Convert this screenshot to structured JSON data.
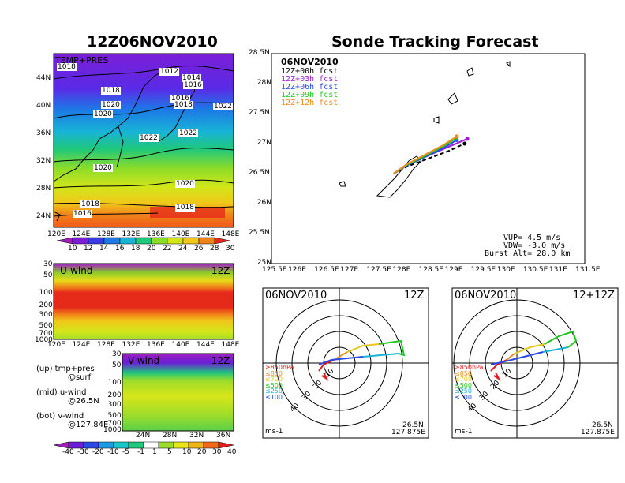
{
  "titles": {
    "left": "12Z06NOV2010",
    "right": "Sonde Tracking Forecast"
  },
  "map_panel": {
    "label": "TEMP+PRES",
    "y_ticks": [
      "44N",
      "40N",
      "36N",
      "32N",
      "28N",
      "24N"
    ],
    "x_ticks": [
      "120E",
      "124E",
      "128E",
      "132E",
      "136E",
      "140E",
      "144E",
      "148E"
    ],
    "isobars": [
      "1018",
      "1012",
      "1014",
      "1016",
      "1018",
      "1016",
      "1020",
      "1018",
      "1020",
      "1022",
      "1022",
      "1022",
      "1020",
      "1020",
      "1018",
      "1016",
      "1018"
    ],
    "colorbar_labels": [
      "10",
      "12",
      "14",
      "16",
      "18",
      "20",
      "22",
      "24",
      "26",
      "28",
      "30"
    ],
    "colorbar_colors": [
      "#9f1fbf",
      "#7a1fd6",
      "#3a3ae6",
      "#1d78e6",
      "#18b4d6",
      "#1fc87a",
      "#8cdc2a",
      "#d2e61a",
      "#f0c81a",
      "#f0821a",
      "#e62a1a"
    ]
  },
  "uwind_panel": {
    "label": "U-wind",
    "time": "12Z",
    "y_ticks": [
      "30",
      "50",
      "100",
      "200",
      "300",
      "500",
      "700",
      "1000"
    ],
    "x_ticks": [
      "120E",
      "124E",
      "128E",
      "132E",
      "136E",
      "140E",
      "144E",
      "148E"
    ]
  },
  "vwind_panel": {
    "label": "V-wind",
    "time": "12Z",
    "y_ticks": [
      "30",
      "50",
      "100",
      "200",
      "300",
      "500",
      "700",
      "1000"
    ],
    "x_ticks": [
      "24N",
      "28N",
      "32N",
      "36N"
    ]
  },
  "descriptions": [
    {
      "line1": "(up) tmp+pres",
      "line2": "@surf"
    },
    {
      "line1": "(mid) u-wind",
      "line2": "@26.5N"
    },
    {
      "line1": "(bot) v-wind",
      "line2": "@127.84E"
    }
  ],
  "wind_colorbar": {
    "labels": [
      "-40",
      "-30",
      "-20",
      "-10",
      "-5",
      "-1",
      "1",
      "5",
      "10",
      "20",
      "30",
      "40"
    ],
    "colors": [
      "#a01fbf",
      "#6a1fd6",
      "#2a4ae6",
      "#1d9ae6",
      "#18c8c8",
      "#1fc87a",
      "#ffffff",
      "#9cdc2a",
      "#e6e61a",
      "#f0b41a",
      "#f06a1a",
      "#e61a1a"
    ]
  },
  "track_panel": {
    "date": "06NOV2010",
    "legend": [
      {
        "label": "12Z+00h fcst",
        "color": "#000000"
      },
      {
        "label": "12Z+03h fcst",
        "color": "#9b1fd6"
      },
      {
        "label": "12Z+06h fcst",
        "color": "#2a4ae6"
      },
      {
        "label": "12Z+09h fcst",
        "color": "#1fc81f"
      },
      {
        "label": "12Z+12h fcst",
        "color": "#f08c1a"
      }
    ],
    "info": [
      "VUP= 4.5 m/s",
      "VDW= -3.0 m/s",
      "Burst Alt= 28.0 km"
    ],
    "y_ticks": [
      "28.5N",
      "28N",
      "27.5N",
      "27N",
      "26.5N",
      "26N",
      "25.5N",
      "25N"
    ],
    "x_ticks": [
      "125.5E",
      "126E",
      "126.5E",
      "127E",
      "127.5E",
      "128E",
      "128.5E",
      "129E",
      "129.5E",
      "130E",
      "130.5E",
      "131E",
      "131.5E"
    ]
  },
  "hodo_left": {
    "date": "06NOV2010",
    "time": "12Z",
    "ring_labels": [
      "10",
      "20",
      "30",
      "40"
    ],
    "levels": [
      {
        "label": "≥850hPa",
        "color": "#e61a1a"
      },
      {
        "label": "≤850",
        "color": "#f08c1a"
      },
      {
        "label": "≤700",
        "color": "#e6c81a"
      },
      {
        "label": "≤500",
        "color": "#1fc81f"
      },
      {
        "label": "≤250",
        "color": "#18b4d6"
      },
      {
        "label": "≤100",
        "color": "#2a4ae6"
      }
    ],
    "units": "ms-1",
    "lat": "26.5N",
    "lon": "127.875E"
  },
  "hodo_right": {
    "date": "06NOV2010",
    "time": "12+12Z",
    "ring_labels": [
      "10",
      "20",
      "30",
      "40"
    ],
    "levels": [
      {
        "label": "≥850hPa",
        "color": "#e61a1a"
      },
      {
        "label": "≤850",
        "color": "#f08c1a"
      },
      {
        "label": "≤700",
        "color": "#e6c81a"
      },
      {
        "label": "≤500",
        "color": "#1fc81f"
      },
      {
        "label": "≤250",
        "color": "#18b4d6"
      },
      {
        "label": "≤100",
        "color": "#2a4ae6"
      }
    ],
    "units": "ms-1",
    "lat": "26.5N",
    "lon": "127.875E"
  },
  "chart_data": [
    {
      "type": "heatmap",
      "title": "12Z06NOV2010",
      "panel": "TEMP+PRES",
      "xlim_label": [
        "120E",
        "148E"
      ],
      "ylim_label": [
        "24N",
        "44N"
      ],
      "colorbar_values": [
        10,
        12,
        14,
        16,
        18,
        20,
        22,
        24,
        26,
        28,
        30
      ],
      "isobar_values": [
        1012,
        1014,
        1016,
        1018,
        1020,
        1022
      ]
    },
    {
      "type": "heatmap",
      "panel": "U-wind",
      "time": "12Z",
      "y_pressure_levels": [
        30,
        50,
        100,
        200,
        300,
        500,
        700,
        1000
      ],
      "x_ticks": [
        "120E",
        "124E",
        "128E",
        "132E",
        "136E",
        "140E",
        "144E",
        "148E"
      ]
    },
    {
      "type": "heatmap",
      "panel": "V-wind",
      "time": "12Z",
      "y_pressure_levels": [
        30,
        50,
        100,
        200,
        300,
        500,
        700,
        1000
      ],
      "x_ticks": [
        "24N",
        "28N",
        "32N",
        "36N"
      ],
      "colorbar_values": [
        -40,
        -30,
        -20,
        -10,
        -5,
        -1,
        1,
        5,
        10,
        20,
        30,
        40
      ]
    },
    {
      "type": "line",
      "title": "Sonde Tracking Forecast",
      "xlim": [
        125.5,
        131.5
      ],
      "ylim": [
        25.0,
        28.5
      ],
      "series": [
        {
          "name": "12Z+00h fcst",
          "color": "#000000",
          "x": [
            127.84,
            128.1,
            128.5,
            128.9,
            129.2
          ],
          "y": [
            26.5,
            26.62,
            26.75,
            26.88,
            27.0
          ]
        },
        {
          "name": "12Z+03h fcst",
          "color": "#9b1fd6",
          "x": [
            127.84,
            128.1,
            128.5,
            128.9,
            129.25
          ],
          "y": [
            26.5,
            26.66,
            26.8,
            26.95,
            27.08
          ]
        },
        {
          "name": "12Z+06h fcst",
          "color": "#2a4ae6",
          "x": [
            127.84,
            128.1,
            128.45,
            128.8,
            129.05
          ],
          "y": [
            26.5,
            26.64,
            26.78,
            26.93,
            27.06
          ]
        },
        {
          "name": "12Z+09h fcst",
          "color": "#1fc81f",
          "x": [
            127.84,
            128.1,
            128.45,
            128.8,
            129.05
          ],
          "y": [
            26.5,
            26.65,
            26.8,
            26.96,
            27.1
          ]
        },
        {
          "name": "12Z+12h fcst",
          "color": "#f08c1a",
          "x": [
            127.84,
            128.1,
            128.45,
            128.8,
            129.05
          ],
          "y": [
            26.5,
            26.66,
            26.82,
            26.98,
            27.12
          ]
        }
      ]
    }
  ]
}
